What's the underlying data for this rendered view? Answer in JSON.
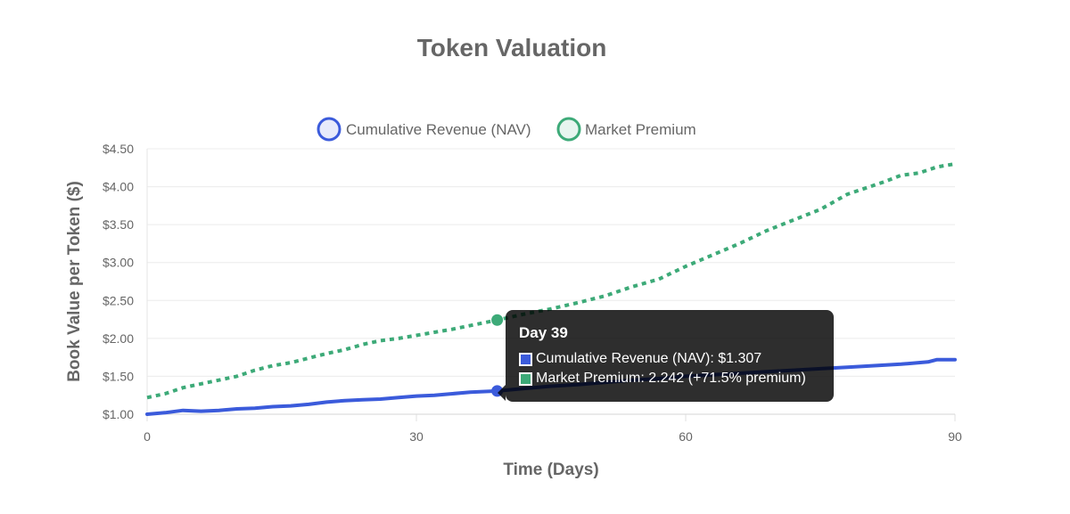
{
  "chart_data": {
    "type": "line",
    "title": "Token Valuation",
    "xlabel": "Time (Days)",
    "ylabel": "Book Value per Token ($)",
    "xlim": [
      0,
      90
    ],
    "ylim": [
      1.0,
      4.5
    ],
    "x_ticks": [
      "0",
      "30",
      "60",
      "90"
    ],
    "y_ticks": [
      "$1.00",
      "$1.50",
      "$2.00",
      "$2.50",
      "$3.00",
      "$3.50",
      "$4.00",
      "$4.50"
    ],
    "grid": true,
    "legend_position": "top",
    "series": [
      {
        "name": "Cumulative Revenue (NAV)",
        "color": "#3b5bdb",
        "style": "solid",
        "points": [
          [
            0,
            1.0
          ],
          [
            2,
            1.02
          ],
          [
            4,
            1.05
          ],
          [
            6,
            1.04
          ],
          [
            8,
            1.05
          ],
          [
            10,
            1.07
          ],
          [
            12,
            1.08
          ],
          [
            14,
            1.1
          ],
          [
            16,
            1.11
          ],
          [
            18,
            1.13
          ],
          [
            20,
            1.16
          ],
          [
            22,
            1.18
          ],
          [
            24,
            1.19
          ],
          [
            26,
            1.2
          ],
          [
            28,
            1.22
          ],
          [
            30,
            1.24
          ],
          [
            32,
            1.25
          ],
          [
            34,
            1.27
          ],
          [
            36,
            1.29
          ],
          [
            39,
            1.307
          ],
          [
            42,
            1.34
          ],
          [
            45,
            1.37
          ],
          [
            48,
            1.39
          ],
          [
            51,
            1.42
          ],
          [
            54,
            1.45
          ],
          [
            57,
            1.47
          ],
          [
            60,
            1.5
          ],
          [
            63,
            1.52
          ],
          [
            66,
            1.54
          ],
          [
            69,
            1.56
          ],
          [
            72,
            1.58
          ],
          [
            75,
            1.6
          ],
          [
            78,
            1.62
          ],
          [
            81,
            1.64
          ],
          [
            84,
            1.66
          ],
          [
            87,
            1.69
          ],
          [
            88,
            1.72
          ],
          [
            90,
            1.72
          ]
        ]
      },
      {
        "name": "Market Premium",
        "color": "#3daa78",
        "style": "dashed",
        "points": [
          [
            0,
            1.22
          ],
          [
            2,
            1.27
          ],
          [
            4,
            1.35
          ],
          [
            6,
            1.4
          ],
          [
            8,
            1.45
          ],
          [
            10,
            1.5
          ],
          [
            12,
            1.58
          ],
          [
            14,
            1.64
          ],
          [
            16,
            1.68
          ],
          [
            18,
            1.74
          ],
          [
            20,
            1.8
          ],
          [
            22,
            1.85
          ],
          [
            24,
            1.92
          ],
          [
            26,
            1.97
          ],
          [
            28,
            2.0
          ],
          [
            30,
            2.04
          ],
          [
            32,
            2.08
          ],
          [
            34,
            2.12
          ],
          [
            36,
            2.17
          ],
          [
            39,
            2.242
          ],
          [
            42,
            2.32
          ],
          [
            45,
            2.39
          ],
          [
            48,
            2.47
          ],
          [
            51,
            2.56
          ],
          [
            54,
            2.68
          ],
          [
            57,
            2.78
          ],
          [
            60,
            2.95
          ],
          [
            63,
            3.1
          ],
          [
            66,
            3.25
          ],
          [
            69,
            3.42
          ],
          [
            72,
            3.56
          ],
          [
            75,
            3.7
          ],
          [
            78,
            3.9
          ],
          [
            80,
            3.98
          ],
          [
            82,
            4.06
          ],
          [
            84,
            4.15
          ],
          [
            86,
            4.18
          ],
          [
            88,
            4.26
          ],
          [
            90,
            4.3
          ]
        ]
      }
    ]
  },
  "tooltip": {
    "title": "Day 39",
    "rows": [
      {
        "text": "Cumulative Revenue (NAV): $1.307",
        "color": "#3b5bdb"
      },
      {
        "text": "Market Premium: 2.242 (+71.5% premium)",
        "color": "#3daa78"
      }
    ],
    "highlight_x": 39
  }
}
